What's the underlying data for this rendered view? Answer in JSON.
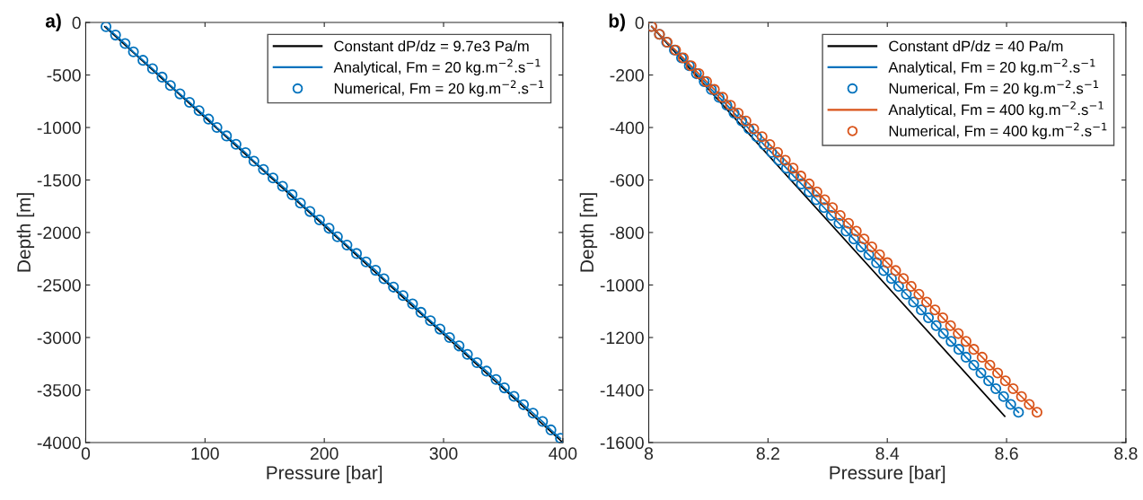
{
  "chart_data": [
    {
      "type": "line",
      "title": "a)",
      "xlabel": "Pressure [bar]",
      "ylabel": "Depth [m]",
      "xlim": [
        0,
        400
      ],
      "ylim": [
        -4000,
        0
      ],
      "xticks": [
        0,
        100,
        200,
        300,
        400
      ],
      "yticks": [
        -4000,
        -3500,
        -3000,
        -2500,
        -2000,
        -1500,
        -1000,
        -500,
        0
      ],
      "grid": false,
      "legend": "top right",
      "series": [
        {
          "name": "Constant dP/dz = 9.7e3 Pa/m",
          "color": "#000000",
          "marker": "none",
          "x": [
            16,
            400
          ],
          "values": [
            -40,
            -4000
          ]
        },
        {
          "name": "Analytical, Fm = 20 kg.m$^{−2}$.s$^{−1}$",
          "type": "line",
          "color": "#0072bd",
          "marker": "none",
          "x": [
            17,
            25,
            33,
            40,
            48,
            56,
            64,
            71,
            79,
            87,
            95,
            103,
            110,
            118,
            126,
            134,
            141,
            149,
            157,
            165,
            173,
            180,
            188,
            196,
            204,
            211,
            219,
            227,
            235,
            243,
            250,
            258,
            266,
            274,
            281,
            289,
            297,
            305,
            313,
            320,
            328,
            336,
            344,
            351,
            359,
            367,
            375,
            383,
            390,
            398
          ],
          "values": [
            -40,
            -120,
            -200,
            -280,
            -360,
            -440,
            -520,
            -600,
            -680,
            -760,
            -840,
            -920,
            -1000,
            -1080,
            -1160,
            -1240,
            -1320,
            -1400,
            -1480,
            -1560,
            -1640,
            -1720,
            -1800,
            -1880,
            -1960,
            -2040,
            -2120,
            -2200,
            -2280,
            -2360,
            -2440,
            -2520,
            -2600,
            -2680,
            -2760,
            -2840,
            -2920,
            -3000,
            -3080,
            -3160,
            -3240,
            -3320,
            -3400,
            -3480,
            -3560,
            -3640,
            -3720,
            -3800,
            -3880,
            -3960
          ]
        },
        {
          "name": "Numerical, Fm = 20 kg.m$^{−2}$.s$^{−1}$",
          "type": "scatter",
          "color": "#0072bd",
          "marker": "circle",
          "x": [
            17,
            25,
            33,
            40,
            48,
            56,
            64,
            71,
            79,
            87,
            95,
            103,
            110,
            118,
            126,
            134,
            141,
            149,
            157,
            165,
            173,
            180,
            188,
            196,
            204,
            211,
            219,
            227,
            235,
            243,
            250,
            258,
            266,
            274,
            281,
            289,
            297,
            305,
            313,
            320,
            328,
            336,
            344,
            351,
            359,
            367,
            375,
            383,
            390,
            398
          ],
          "values": [
            -40,
            -120,
            -200,
            -280,
            -360,
            -440,
            -520,
            -600,
            -680,
            -760,
            -840,
            -920,
            -1000,
            -1080,
            -1160,
            -1240,
            -1320,
            -1400,
            -1480,
            -1560,
            -1640,
            -1720,
            -1800,
            -1880,
            -1960,
            -2040,
            -2120,
            -2200,
            -2280,
            -2360,
            -2440,
            -2520,
            -2600,
            -2680,
            -2760,
            -2840,
            -2920,
            -3000,
            -3080,
            -3160,
            -3240,
            -3320,
            -3400,
            -3480,
            -3560,
            -3640,
            -3720,
            -3800,
            -3880,
            -3960
          ]
        }
      ]
    },
    {
      "type": "line",
      "title": "b)",
      "xlabel": "Pressure [bar]",
      "ylabel": "Depth [m]",
      "xlim": [
        8,
        8.8
      ],
      "ylim": [
        -1600,
        0
      ],
      "xticks": [
        8,
        8.2,
        8.4,
        8.6,
        8.8
      ],
      "yticks": [
        -1600,
        -1400,
        -1200,
        -1000,
        -800,
        -600,
        -400,
        -200,
        0
      ],
      "grid": false,
      "legend": "top right",
      "series": [
        {
          "name": "Constant dP/dz = 40 Pa/m",
          "color": "#000000",
          "marker": "none",
          "x": [
            8.005,
            8.597
          ],
          "values": [
            -15,
            -1500
          ]
        },
        {
          "name": "Analytical, Fm = 20 kg.m$^{−2}$.s$^{−1}$",
          "type": "line",
          "color": "#0072bd",
          "marker": "none",
          "x": [
            8.005,
            8.018,
            8.03,
            8.043,
            8.055,
            8.068,
            8.08,
            8.093,
            8.105,
            8.118,
            8.131,
            8.143,
            8.156,
            8.168,
            8.181,
            8.193,
            8.206,
            8.218,
            8.231,
            8.243,
            8.256,
            8.269,
            8.281,
            8.294,
            8.306,
            8.319,
            8.331,
            8.344,
            8.356,
            8.369,
            8.382,
            8.394,
            8.407,
            8.419,
            8.432,
            8.444,
            8.457,
            8.469,
            8.482,
            8.494,
            8.507,
            8.52,
            8.532,
            8.545,
            8.557,
            8.57,
            8.582,
            8.595,
            8.607,
            8.62
          ],
          "values": [
            -15,
            -45,
            -75,
            -105,
            -135,
            -165,
            -195,
            -225,
            -255,
            -285,
            -315,
            -345,
            -375,
            -405,
            -435,
            -465,
            -495,
            -525,
            -555,
            -585,
            -615,
            -645,
            -675,
            -705,
            -735,
            -765,
            -795,
            -825,
            -855,
            -885,
            -915,
            -945,
            -975,
            -1005,
            -1035,
            -1065,
            -1095,
            -1125,
            -1155,
            -1185,
            -1215,
            -1245,
            -1275,
            -1305,
            -1335,
            -1365,
            -1395,
            -1425,
            -1455,
            -1485
          ]
        },
        {
          "name": "Numerical, Fm = 20 kg.m$^{−2}$.s$^{−1}$",
          "type": "scatter",
          "color": "#0072bd",
          "marker": "circle",
          "x": [
            8.005,
            8.018,
            8.03,
            8.043,
            8.055,
            8.068,
            8.08,
            8.093,
            8.105,
            8.118,
            8.131,
            8.143,
            8.156,
            8.168,
            8.181,
            8.193,
            8.206,
            8.218,
            8.231,
            8.243,
            8.256,
            8.269,
            8.281,
            8.294,
            8.306,
            8.319,
            8.331,
            8.344,
            8.356,
            8.369,
            8.382,
            8.394,
            8.407,
            8.419,
            8.432,
            8.444,
            8.457,
            8.469,
            8.482,
            8.494,
            8.507,
            8.52,
            8.532,
            8.545,
            8.557,
            8.57,
            8.582,
            8.595,
            8.607,
            8.62
          ],
          "values": [
            -15,
            -45,
            -75,
            -105,
            -135,
            -165,
            -195,
            -225,
            -255,
            -285,
            -315,
            -345,
            -375,
            -405,
            -435,
            -465,
            -495,
            -525,
            -555,
            -585,
            -615,
            -645,
            -675,
            -705,
            -735,
            -765,
            -795,
            -825,
            -855,
            -885,
            -915,
            -945,
            -975,
            -1005,
            -1035,
            -1065,
            -1095,
            -1125,
            -1155,
            -1185,
            -1215,
            -1245,
            -1275,
            -1305,
            -1335,
            -1365,
            -1395,
            -1425,
            -1455,
            -1485
          ]
        },
        {
          "name": "Analytical, Fm = 400 kg.m$^{−2}$.s$^{−1}$",
          "color": "#d95319",
          "marker": "none",
          "x": [
            8.005,
            8.018,
            8.031,
            8.045,
            8.058,
            8.071,
            8.084,
            8.097,
            8.11,
            8.124,
            8.137,
            8.15,
            8.163,
            8.176,
            8.19,
            8.203,
            8.216,
            8.229,
            8.242,
            8.255,
            8.269,
            8.282,
            8.295,
            8.308,
            8.321,
            8.335,
            8.348,
            8.361,
            8.374,
            8.387,
            8.4,
            8.414,
            8.427,
            8.44,
            8.453,
            8.466,
            8.48,
            8.493,
            8.506,
            8.519,
            8.532,
            8.545,
            8.559,
            8.572,
            8.585,
            8.598,
            8.611,
            8.625,
            8.638,
            8.651
          ],
          "values": [
            -15,
            -45,
            -75,
            -105,
            -135,
            -165,
            -195,
            -225,
            -255,
            -285,
            -315,
            -345,
            -375,
            -405,
            -435,
            -465,
            -495,
            -525,
            -555,
            -585,
            -615,
            -645,
            -675,
            -705,
            -735,
            -765,
            -795,
            -825,
            -855,
            -885,
            -915,
            -945,
            -975,
            -1005,
            -1035,
            -1065,
            -1095,
            -1125,
            -1155,
            -1185,
            -1215,
            -1245,
            -1275,
            -1305,
            -1335,
            -1365,
            -1395,
            -1425,
            -1455,
            -1485
          ]
        },
        {
          "name": "Numerical, Fm = 400 kg.m$^{−2}$.s$^{−1}$",
          "type": "scatter",
          "color": "#d95319",
          "marker": "circle",
          "x": [
            8.005,
            8.018,
            8.031,
            8.045,
            8.058,
            8.071,
            8.084,
            8.097,
            8.11,
            8.124,
            8.137,
            8.15,
            8.163,
            8.176,
            8.19,
            8.203,
            8.216,
            8.229,
            8.242,
            8.255,
            8.269,
            8.282,
            8.295,
            8.308,
            8.321,
            8.335,
            8.348,
            8.361,
            8.374,
            8.387,
            8.4,
            8.414,
            8.427,
            8.44,
            8.453,
            8.466,
            8.48,
            8.493,
            8.506,
            8.519,
            8.532,
            8.545,
            8.559,
            8.572,
            8.585,
            8.598,
            8.611,
            8.625,
            8.638,
            8.651
          ],
          "values": [
            -15,
            -45,
            -75,
            -105,
            -135,
            -165,
            -195,
            -225,
            -255,
            -285,
            -315,
            -345,
            -375,
            -405,
            -435,
            -465,
            -495,
            -525,
            -555,
            -585,
            -615,
            -645,
            -675,
            -705,
            -735,
            -765,
            -795,
            -825,
            -855,
            -885,
            -915,
            -945,
            -975,
            -1005,
            -1035,
            -1065,
            -1095,
            -1125,
            -1155,
            -1185,
            -1215,
            -1245,
            -1275,
            -1305,
            -1335,
            -1365,
            -1395,
            -1425,
            -1455,
            -1485
          ]
        }
      ]
    }
  ]
}
